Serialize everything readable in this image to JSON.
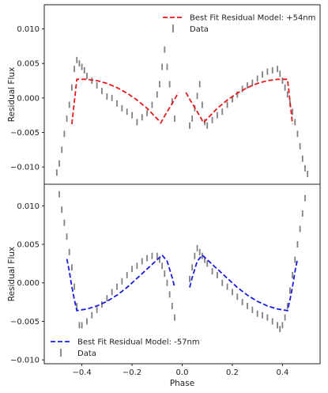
{
  "chart_data": [
    {
      "type": "scatter",
      "panel": "top",
      "xlabel": "",
      "ylabel": "Residual Flux",
      "xlim": [
        -0.55,
        0.55
      ],
      "ylim": [
        -0.0125,
        0.0135
      ],
      "xticks": [],
      "yticks": [
        {
          "v": 0.01,
          "label": "0.010"
        },
        {
          "v": 0.005,
          "label": "0.005"
        },
        {
          "v": 0.0,
          "label": "0.000"
        },
        {
          "v": -0.005,
          "label": "−0.005"
        },
        {
          "v": -0.01,
          "label": "−0.010"
        }
      ],
      "legend_position": "top-right",
      "grid": false,
      "series": [
        {
          "name": "Best Fit Residual Model: +54nm",
          "kind": "model",
          "color": "#e41a1c",
          "x": [
            -0.44,
            -0.42,
            -0.38,
            -0.34,
            -0.3,
            -0.26,
            -0.22,
            -0.18,
            -0.14,
            -0.1,
            -0.085,
            -0.07,
            -0.05,
            -0.03,
            -0.015,
            0.015,
            0.03,
            0.05,
            0.07,
            0.085,
            0.1,
            0.14,
            0.18,
            0.22,
            0.26,
            0.3,
            0.34,
            0.38,
            0.42,
            0.44
          ],
          "y": [
            -0.0038,
            0.0027,
            0.0027,
            0.0025,
            0.0021,
            0.0015,
            0.0007,
            -0.0003,
            -0.0015,
            -0.003,
            -0.0036,
            -0.0026,
            -0.0014,
            -0.0002,
            0.0008,
            0.0008,
            -0.0002,
            -0.0014,
            -0.0026,
            -0.0036,
            -0.003,
            -0.0015,
            -0.0003,
            0.0007,
            0.0015,
            0.0021,
            0.0025,
            0.0027,
            0.0027,
            -0.0038
          ]
        },
        {
          "name": "Data",
          "kind": "data",
          "color": "#808080",
          "x": [
            -0.5,
            -0.49,
            -0.48,
            -0.47,
            -0.46,
            -0.45,
            -0.44,
            -0.43,
            -0.42,
            -0.41,
            -0.4,
            -0.39,
            -0.38,
            -0.36,
            -0.34,
            -0.32,
            -0.3,
            -0.28,
            -0.26,
            -0.24,
            -0.22,
            -0.2,
            -0.18,
            -0.16,
            -0.14,
            -0.12,
            -0.1,
            -0.09,
            -0.08,
            -0.07,
            -0.06,
            -0.05,
            -0.04,
            -0.03,
            0.03,
            0.04,
            0.05,
            0.06,
            0.07,
            0.08,
            0.09,
            0.1,
            0.12,
            0.14,
            0.16,
            0.18,
            0.2,
            0.22,
            0.24,
            0.26,
            0.28,
            0.3,
            0.32,
            0.34,
            0.36,
            0.38,
            0.39,
            0.4,
            0.41,
            0.42,
            0.43,
            0.44,
            0.45,
            0.46,
            0.47,
            0.48,
            0.49,
            0.5
          ],
          "y": [
            -0.0108,
            -0.0095,
            -0.0075,
            -0.0052,
            -0.003,
            -0.001,
            0.0015,
            0.0042,
            0.0055,
            0.005,
            0.0045,
            0.004,
            0.0032,
            0.0025,
            0.0018,
            0.001,
            0.0002,
            0.0,
            -0.0008,
            -0.0015,
            -0.002,
            -0.0025,
            -0.0035,
            -0.0028,
            -0.0022,
            -0.001,
            0.0005,
            0.002,
            0.0045,
            0.007,
            0.0045,
            0.002,
            -0.0005,
            -0.003,
            -0.004,
            -0.003,
            -0.0015,
            0.0003,
            0.002,
            -0.001,
            -0.0035,
            -0.004,
            -0.0032,
            -0.0025,
            -0.002,
            -0.001,
            -0.0002,
            0.0005,
            0.0013,
            0.0018,
            0.0022,
            0.0028,
            0.0034,
            0.0038,
            0.004,
            0.0042,
            0.0035,
            0.0025,
            0.0015,
            0.0005,
            -0.0008,
            -0.002,
            -0.0035,
            -0.0052,
            -0.007,
            -0.0088,
            -0.0102,
            -0.011
          ]
        }
      ]
    },
    {
      "type": "scatter",
      "panel": "bottom",
      "xlabel": "Phase",
      "ylabel": "Residual Flux",
      "xlim": [
        -0.55,
        0.55
      ],
      "ylim": [
        -0.0105,
        0.0128
      ],
      "xticks": [
        {
          "v": -0.4,
          "label": "−0.4"
        },
        {
          "v": -0.2,
          "label": "−0.2"
        },
        {
          "v": 0.0,
          "label": "0.0"
        },
        {
          "v": 0.2,
          "label": "0.2"
        },
        {
          "v": 0.4,
          "label": "0.4"
        }
      ],
      "yticks": [
        {
          "v": 0.01,
          "label": "0.010"
        },
        {
          "v": 0.005,
          "label": "0.005"
        },
        {
          "v": 0.0,
          "label": "0.000"
        },
        {
          "v": -0.005,
          "label": "−0.005"
        },
        {
          "v": -0.01,
          "label": "−0.010"
        }
      ],
      "legend_position": "bottom-left",
      "grid": false,
      "series": [
        {
          "name": "Best Fit Residual Model: -57nm",
          "kind": "model",
          "color": "#1a1ae0",
          "x": [
            -0.46,
            -0.45,
            -0.44,
            -0.43,
            -0.42,
            -0.38,
            -0.34,
            -0.3,
            -0.26,
            -0.22,
            -0.18,
            -0.14,
            -0.1,
            -0.08,
            -0.06,
            -0.04,
            -0.03,
            0.03,
            0.04,
            0.06,
            0.08,
            0.1,
            0.14,
            0.18,
            0.22,
            0.26,
            0.3,
            0.34,
            0.38,
            0.42,
            0.43,
            0.44,
            0.45,
            0.46
          ],
          "y": [
            0.0031,
            0.0015,
            -0.0005,
            -0.0022,
            -0.0036,
            -0.0034,
            -0.003,
            -0.0024,
            -0.0016,
            -0.0006,
            0.0006,
            0.0018,
            0.003,
            0.0036,
            0.0028,
            0.0007,
            -0.0006,
            -0.0006,
            0.0007,
            0.0028,
            0.0036,
            0.003,
            0.0018,
            0.0006,
            -0.0006,
            -0.0016,
            -0.0024,
            -0.003,
            -0.0034,
            -0.0036,
            -0.0022,
            -0.0005,
            0.0015,
            0.0031
          ]
        },
        {
          "name": "Data",
          "kind": "data",
          "color": "#808080",
          "x": [
            -0.49,
            -0.48,
            -0.47,
            -0.46,
            -0.45,
            -0.44,
            -0.43,
            -0.42,
            -0.41,
            -0.4,
            -0.38,
            -0.36,
            -0.34,
            -0.32,
            -0.3,
            -0.28,
            -0.26,
            -0.24,
            -0.22,
            -0.2,
            -0.18,
            -0.16,
            -0.14,
            -0.12,
            -0.1,
            -0.09,
            -0.08,
            -0.07,
            -0.06,
            -0.05,
            -0.04,
            -0.03,
            0.03,
            0.04,
            0.05,
            0.06,
            0.07,
            0.08,
            0.09,
            0.1,
            0.12,
            0.14,
            0.16,
            0.18,
            0.2,
            0.22,
            0.24,
            0.26,
            0.28,
            0.3,
            0.32,
            0.34,
            0.36,
            0.38,
            0.39,
            0.4,
            0.41,
            0.42,
            0.43,
            0.44,
            0.45,
            0.46,
            0.47,
            0.48,
            0.49
          ],
          "y": [
            0.0115,
            0.0095,
            0.0078,
            0.006,
            0.004,
            0.002,
            -0.0005,
            -0.003,
            -0.0055,
            -0.0055,
            -0.005,
            -0.0042,
            -0.0035,
            -0.0028,
            -0.002,
            -0.0012,
            -0.0005,
            0.0002,
            0.001,
            0.0018,
            0.0022,
            0.0028,
            0.0032,
            0.0035,
            0.0035,
            0.003,
            0.0022,
            0.0012,
            0.0,
            -0.0015,
            -0.003,
            -0.0045,
            0.0005,
            0.002,
            0.0035,
            0.0045,
            0.004,
            0.0035,
            0.003,
            0.0025,
            0.0015,
            0.001,
            0.0,
            -0.0005,
            -0.0012,
            -0.0018,
            -0.0025,
            -0.003,
            -0.0035,
            -0.004,
            -0.0042,
            -0.0045,
            -0.005,
            -0.0055,
            -0.006,
            -0.0055,
            -0.0045,
            -0.003,
            -0.001,
            0.001,
            0.003,
            0.005,
            0.007,
            0.009,
            0.011
          ]
        }
      ]
    }
  ]
}
